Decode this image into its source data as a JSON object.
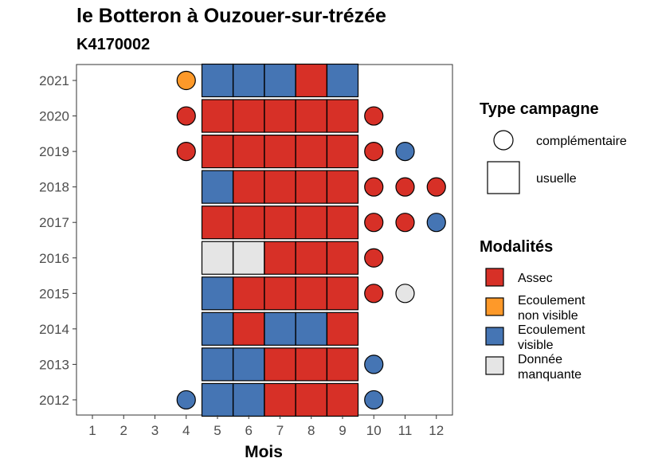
{
  "chart_data": {
    "type": "heatmap",
    "title": "le Botteron à Ouzouer-sur-trézée",
    "subtitle": "K4170002",
    "xlabel": "Mois",
    "ylabel": "",
    "x_ticks": [
      "1",
      "2",
      "3",
      "4",
      "5",
      "6",
      "7",
      "8",
      "9",
      "10",
      "11",
      "12"
    ],
    "y_ticks": [
      "2012",
      "2013",
      "2014",
      "2015",
      "2016",
      "2017",
      "2018",
      "2019",
      "2020",
      "2021"
    ],
    "colors": {
      "Assec": "#d73027",
      "Ecoulement non visible": "#fe9929",
      "Ecoulement visible": "#4575b4",
      "Donnée manquante": "#e5e5e5"
    },
    "usuelle": [
      {
        "year": 2021,
        "values": [
          {
            "month": 5,
            "m": "Ecoulement visible"
          },
          {
            "month": 6,
            "m": "Ecoulement visible"
          },
          {
            "month": 7,
            "m": "Ecoulement visible"
          },
          {
            "month": 8,
            "m": "Assec"
          },
          {
            "month": 9,
            "m": "Ecoulement visible"
          }
        ]
      },
      {
        "year": 2020,
        "values": [
          {
            "month": 5,
            "m": "Assec"
          },
          {
            "month": 6,
            "m": "Assec"
          },
          {
            "month": 7,
            "m": "Assec"
          },
          {
            "month": 8,
            "m": "Assec"
          },
          {
            "month": 9,
            "m": "Assec"
          }
        ]
      },
      {
        "year": 2019,
        "values": [
          {
            "month": 5,
            "m": "Assec"
          },
          {
            "month": 6,
            "m": "Assec"
          },
          {
            "month": 7,
            "m": "Assec"
          },
          {
            "month": 8,
            "m": "Assec"
          },
          {
            "month": 9,
            "m": "Assec"
          }
        ]
      },
      {
        "year": 2018,
        "values": [
          {
            "month": 5,
            "m": "Ecoulement visible"
          },
          {
            "month": 6,
            "m": "Assec"
          },
          {
            "month": 7,
            "m": "Assec"
          },
          {
            "month": 8,
            "m": "Assec"
          },
          {
            "month": 9,
            "m": "Assec"
          }
        ]
      },
      {
        "year": 2017,
        "values": [
          {
            "month": 5,
            "m": "Assec"
          },
          {
            "month": 6,
            "m": "Assec"
          },
          {
            "month": 7,
            "m": "Assec"
          },
          {
            "month": 8,
            "m": "Assec"
          },
          {
            "month": 9,
            "m": "Assec"
          }
        ]
      },
      {
        "year": 2016,
        "values": [
          {
            "month": 5,
            "m": "Donnée manquante"
          },
          {
            "month": 6,
            "m": "Donnée manquante"
          },
          {
            "month": 7,
            "m": "Assec"
          },
          {
            "month": 8,
            "m": "Assec"
          },
          {
            "month": 9,
            "m": "Assec"
          }
        ]
      },
      {
        "year": 2015,
        "values": [
          {
            "month": 5,
            "m": "Ecoulement visible"
          },
          {
            "month": 6,
            "m": "Assec"
          },
          {
            "month": 7,
            "m": "Assec"
          },
          {
            "month": 8,
            "m": "Assec"
          },
          {
            "month": 9,
            "m": "Assec"
          }
        ]
      },
      {
        "year": 2014,
        "values": [
          {
            "month": 5,
            "m": "Ecoulement visible"
          },
          {
            "month": 6,
            "m": "Assec"
          },
          {
            "month": 7,
            "m": "Ecoulement visible"
          },
          {
            "month": 8,
            "m": "Ecoulement visible"
          },
          {
            "month": 9,
            "m": "Assec"
          }
        ]
      },
      {
        "year": 2013,
        "values": [
          {
            "month": 5,
            "m": "Ecoulement visible"
          },
          {
            "month": 6,
            "m": "Ecoulement visible"
          },
          {
            "month": 7,
            "m": "Assec"
          },
          {
            "month": 8,
            "m": "Assec"
          },
          {
            "month": 9,
            "m": "Assec"
          }
        ]
      },
      {
        "year": 2012,
        "values": [
          {
            "month": 5,
            "m": "Ecoulement visible"
          },
          {
            "month": 6,
            "m": "Ecoulement visible"
          },
          {
            "month": 7,
            "m": "Assec"
          },
          {
            "month": 8,
            "m": "Assec"
          },
          {
            "month": 9,
            "m": "Assec"
          }
        ]
      }
    ],
    "complementaire": [
      {
        "year": 2021,
        "month": 4,
        "m": "Ecoulement non visible"
      },
      {
        "year": 2020,
        "month": 4,
        "m": "Assec"
      },
      {
        "year": 2020,
        "month": 10,
        "m": "Assec"
      },
      {
        "year": 2019,
        "month": 4,
        "m": "Assec"
      },
      {
        "year": 2019,
        "month": 10,
        "m": "Assec"
      },
      {
        "year": 2019,
        "month": 11,
        "m": "Ecoulement visible"
      },
      {
        "year": 2018,
        "month": 10,
        "m": "Assec"
      },
      {
        "year": 2018,
        "month": 11,
        "m": "Assec"
      },
      {
        "year": 2018,
        "month": 12,
        "m": "Assec"
      },
      {
        "year": 2017,
        "month": 10,
        "m": "Assec"
      },
      {
        "year": 2017,
        "month": 11,
        "m": "Assec"
      },
      {
        "year": 2017,
        "month": 12,
        "m": "Ecoulement visible"
      },
      {
        "year": 2016,
        "month": 10,
        "m": "Assec"
      },
      {
        "year": 2015,
        "month": 10,
        "m": "Assec"
      },
      {
        "year": 2015,
        "month": 11,
        "m": "Donnée manquante"
      },
      {
        "year": 2013,
        "month": 10,
        "m": "Ecoulement visible"
      },
      {
        "year": 2012,
        "month": 4,
        "m": "Ecoulement visible"
      },
      {
        "year": 2012,
        "month": 10,
        "m": "Ecoulement visible"
      }
    ],
    "legend": {
      "type_title": "Type campagne",
      "type_items": [
        {
          "label": "complémentaire",
          "shape": "circle"
        },
        {
          "label": "usuelle",
          "shape": "square"
        }
      ],
      "modal_title": "Modalités",
      "modal_items": [
        {
          "key": "Assec",
          "lines": [
            "Assec"
          ]
        },
        {
          "key": "Ecoulement non visible",
          "lines": [
            "Ecoulement",
            "non visible"
          ]
        },
        {
          "key": "Ecoulement visible",
          "lines": [
            "Ecoulement",
            "visible"
          ]
        },
        {
          "key": "Donnée manquante",
          "lines": [
            "Donnée",
            "manquante"
          ]
        }
      ],
      "placement": "right"
    },
    "grid": false
  }
}
